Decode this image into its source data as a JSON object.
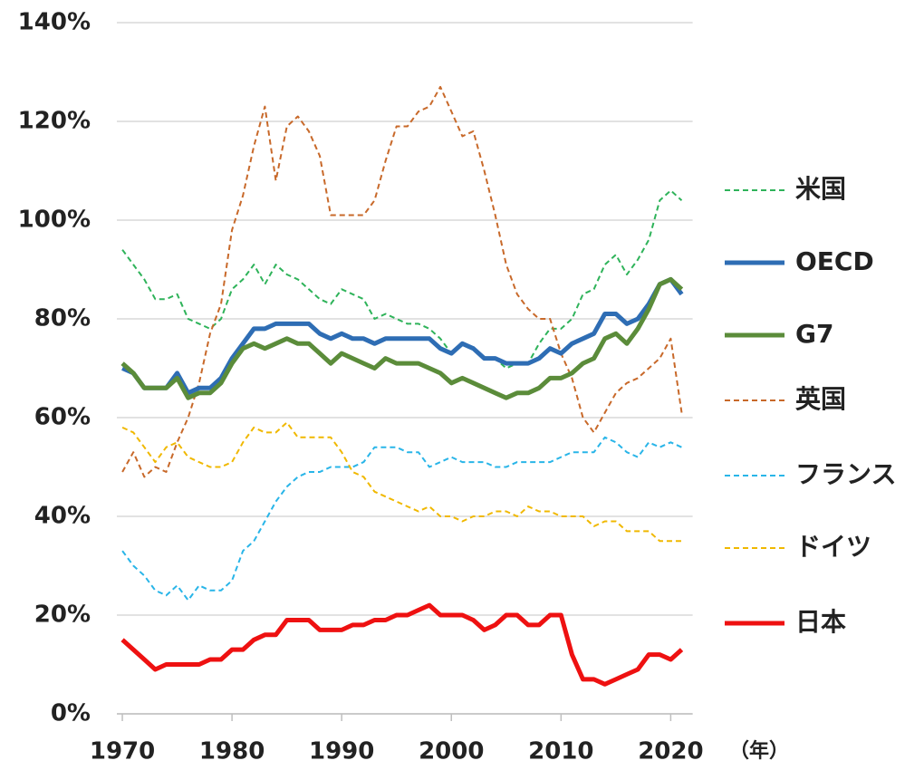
{
  "chart_data": {
    "type": "line",
    "x": [
      1970,
      1971,
      1972,
      1973,
      1974,
      1975,
      1976,
      1977,
      1978,
      1979,
      1980,
      1981,
      1982,
      1983,
      1984,
      1985,
      1986,
      1987,
      1988,
      1989,
      1990,
      1991,
      1992,
      1993,
      1994,
      1995,
      1996,
      1997,
      1998,
      1999,
      2000,
      2001,
      2002,
      2003,
      2004,
      2005,
      2006,
      2007,
      2008,
      2009,
      2010,
      2011,
      2012,
      2013,
      2014,
      2015,
      2016,
      2017,
      2018,
      2019,
      2020,
      2021
    ],
    "series": [
      {
        "name": "米国",
        "color": "#2fb35a",
        "line_style": "dashed",
        "values": [
          94,
          91,
          88,
          84,
          84,
          85,
          80,
          79,
          78,
          80,
          86,
          88,
          91,
          87,
          91,
          89,
          88,
          86,
          84,
          83,
          86,
          85,
          84,
          80,
          81,
          80,
          79,
          79,
          78,
          76,
          73,
          75,
          74,
          72,
          72,
          70,
          71,
          71,
          75,
          78,
          78,
          80,
          85,
          86,
          91,
          93,
          89,
          92,
          96,
          104,
          106,
          104
        ]
      },
      {
        "name": "OECD",
        "color": "#2e6db4",
        "line_style": "solid",
        "values": [
          70,
          69,
          66,
          66,
          66,
          69,
          65,
          66,
          66,
          68,
          72,
          75,
          78,
          78,
          79,
          79,
          79,
          79,
          77,
          76,
          77,
          76,
          76,
          75,
          76,
          76,
          76,
          76,
          76,
          74,
          73,
          75,
          74,
          72,
          72,
          71,
          71,
          71,
          72,
          74,
          73,
          75,
          76,
          77,
          81,
          81,
          79,
          80,
          83,
          87,
          88,
          85
        ]
      },
      {
        "name": "G7",
        "color": "#5b8c3a",
        "line_style": "solid",
        "values": [
          71,
          69,
          66,
          66,
          66,
          68,
          64,
          65,
          65,
          67,
          71,
          74,
          75,
          74,
          75,
          76,
          75,
          75,
          73,
          71,
          73,
          72,
          71,
          70,
          72,
          71,
          71,
          71,
          70,
          69,
          67,
          68,
          67,
          66,
          65,
          64,
          65,
          65,
          66,
          68,
          68,
          69,
          71,
          72,
          76,
          77,
          75,
          78,
          82,
          87,
          88,
          86
        ]
      },
      {
        "name": "英国",
        "color": "#c8692a",
        "line_style": "dashed",
        "values": [
          49,
          53,
          48,
          50,
          49,
          55,
          60,
          67,
          77,
          83,
          98,
          105,
          115,
          123,
          108,
          119,
          121,
          118,
          113,
          101,
          101,
          101,
          101,
          104,
          112,
          119,
          119,
          122,
          123,
          127,
          122,
          117,
          118,
          110,
          101,
          91,
          85,
          82,
          80,
          80,
          73,
          68,
          60,
          57,
          61,
          65,
          67,
          68,
          70,
          72,
          76,
          61
        ]
      },
      {
        "name": "フランス",
        "color": "#29b5e8",
        "line_style": "dashed",
        "values": [
          33,
          30,
          28,
          25,
          24,
          26,
          23,
          26,
          25,
          25,
          27,
          33,
          35,
          39,
          43,
          46,
          48,
          49,
          49,
          50,
          50,
          50,
          51,
          54,
          54,
          54,
          53,
          53,
          50,
          51,
          52,
          51,
          51,
          51,
          50,
          50,
          51,
          51,
          51,
          51,
          52,
          53,
          53,
          53,
          56,
          55,
          53,
          52,
          55,
          54,
          55,
          54
        ]
      },
      {
        "name": "ドイツ",
        "color": "#f0b800",
        "line_style": "dashed",
        "values": [
          58,
          57,
          54,
          51,
          54,
          55,
          52,
          51,
          50,
          50,
          51,
          55,
          58,
          57,
          57,
          59,
          56,
          56,
          56,
          56,
          53,
          49,
          48,
          45,
          44,
          43,
          42,
          41,
          42,
          40,
          40,
          39,
          40,
          40,
          41,
          41,
          40,
          42,
          41,
          41,
          40,
          40,
          40,
          38,
          39,
          39,
          37,
          37,
          37,
          35,
          35,
          35
        ]
      },
      {
        "name": "日本",
        "color": "#ee1111",
        "line_style": "solid",
        "values": [
          15,
          13,
          11,
          9,
          10,
          10,
          10,
          10,
          11,
          11,
          13,
          13,
          15,
          16,
          16,
          19,
          19,
          19,
          17,
          17,
          17,
          18,
          18,
          19,
          19,
          20,
          20,
          21,
          22,
          20,
          20,
          20,
          19,
          17,
          18,
          20,
          20,
          18,
          18,
          20,
          20,
          12,
          7,
          7,
          6,
          7,
          8,
          9,
          12,
          12,
          11,
          13
        ]
      }
    ],
    "xlim": [
      1969.5,
      2022
    ],
    "xticks": [
      1970,
      1980,
      1990,
      2000,
      2010,
      2020
    ],
    "x_unit": "（年）",
    "ylim": [
      0,
      140
    ],
    "yticks": [
      {
        "value": 0,
        "label": "0%"
      },
      {
        "value": 20,
        "label": "20%"
      },
      {
        "value": 40,
        "label": "40%"
      },
      {
        "value": 60,
        "label": "60%"
      },
      {
        "value": 80,
        "label": "80%"
      },
      {
        "value": 100,
        "label": "100%"
      },
      {
        "value": 120,
        "label": "120%"
      },
      {
        "value": 140,
        "label": "140%"
      }
    ],
    "grid": true,
    "legend": "right"
  }
}
